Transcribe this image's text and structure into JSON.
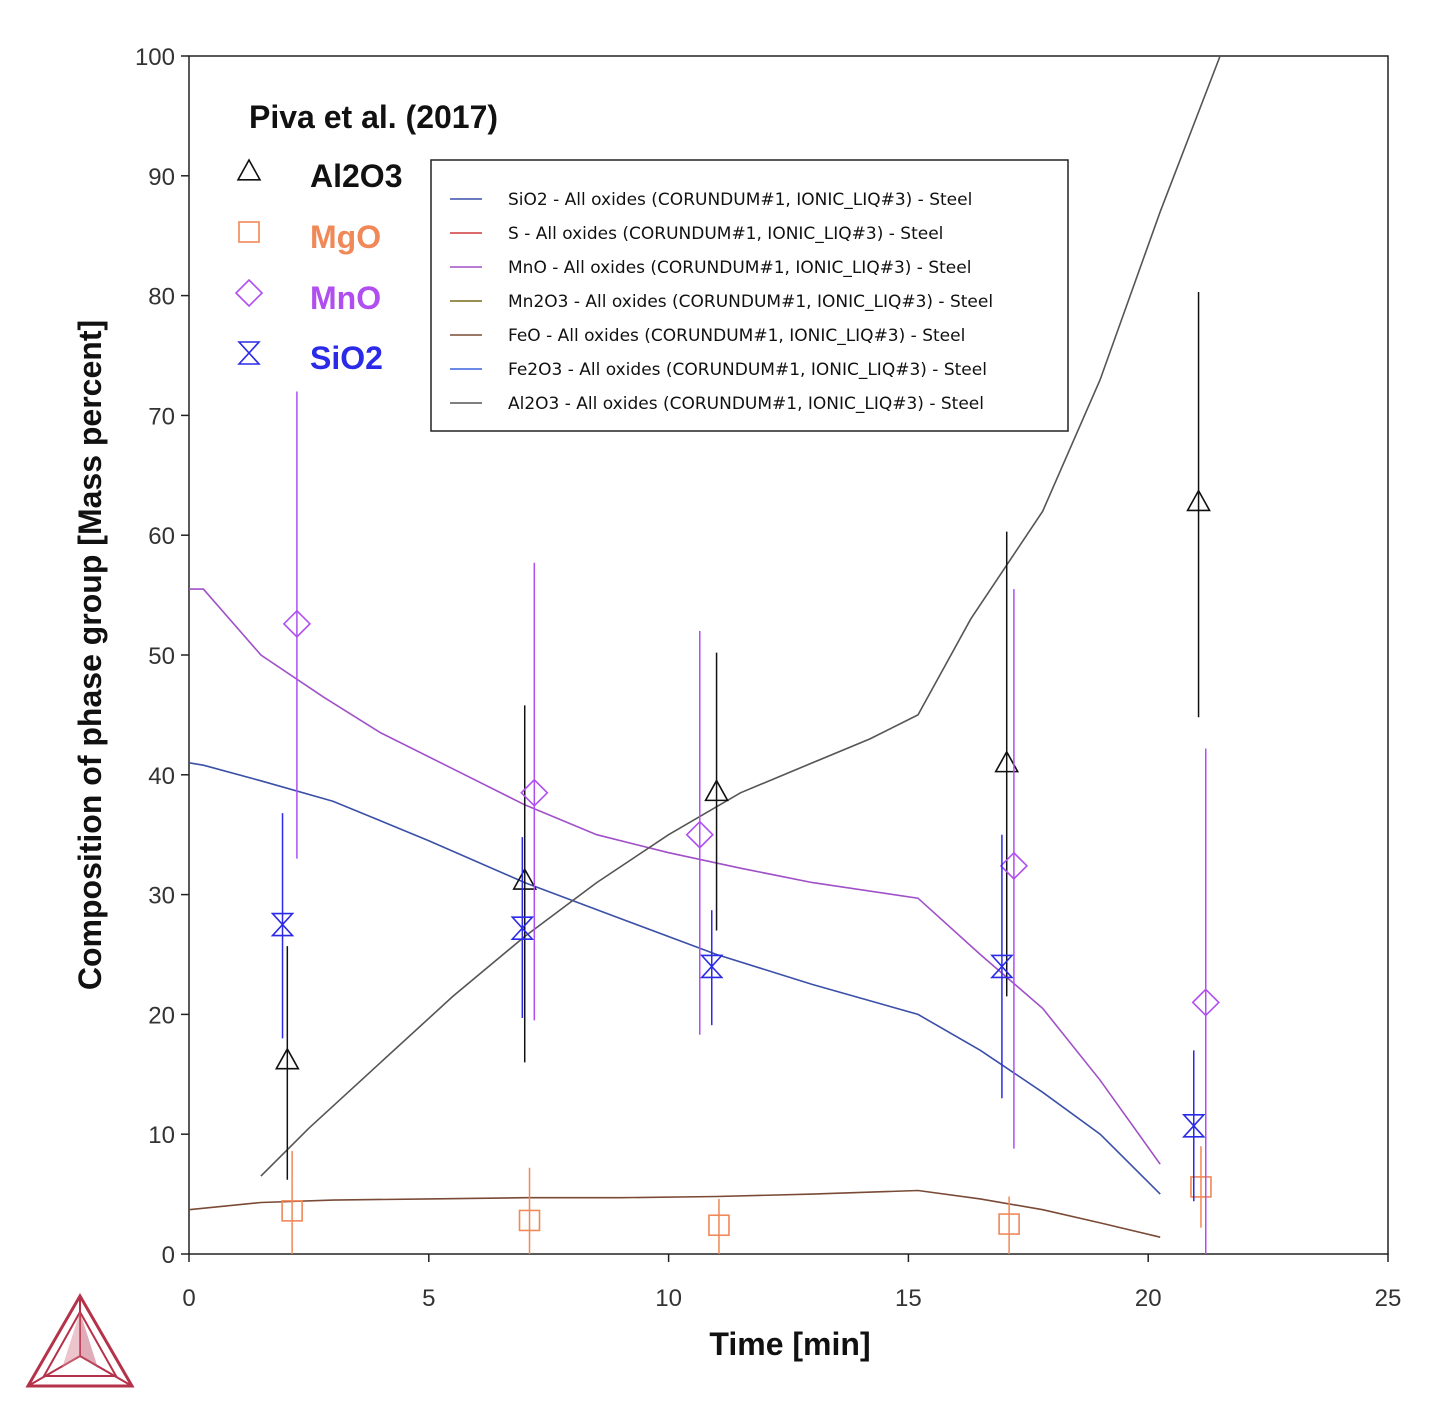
{
  "chart_data": {
    "type": "line",
    "xlabel": "Time [min]",
    "ylabel": "Composition of phase group [Mass percent]",
    "xlim": [
      0,
      25
    ],
    "ylim": [
      0,
      100
    ],
    "xticks": [
      0,
      5,
      10,
      15,
      20,
      25
    ],
    "yticks": [
      0,
      10,
      20,
      30,
      40,
      50,
      60,
      70,
      80,
      90,
      100
    ],
    "grid": false,
    "legend_position": "top-center",
    "series": [
      {
        "name": "SiO2 - All oxides (CORUNDUM#1, IONIC_LIQ#3) - Steel",
        "color": "#3a4fa8",
        "x": [
          0,
          0.3,
          1.5,
          3,
          5,
          7,
          9,
          11,
          13,
          15.2,
          16.5,
          17.8,
          19,
          20.25
        ],
        "y": [
          41,
          40.8,
          39.5,
          37.8,
          34.5,
          31,
          28,
          25,
          22.5,
          20,
          17,
          13.5,
          10,
          5
        ]
      },
      {
        "name": "S - All oxides (CORUNDUM#1, IONIC_LIQ#3) - Steel",
        "color": "#d03a3a",
        "x": [],
        "y": []
      },
      {
        "name": "MnO - All oxides (CORUNDUM#1, IONIC_LIQ#3) - Steel",
        "color": "#a050c8",
        "x": [
          0,
          0.3,
          1.5,
          2.8,
          4,
          5.5,
          7,
          8.5,
          10,
          11.5,
          13,
          15.2,
          16.5,
          17.8,
          19,
          20.25
        ],
        "y": [
          55.5,
          55.5,
          50,
          46.5,
          43.5,
          40.5,
          37.5,
          35,
          33.5,
          32.2,
          31,
          29.7,
          25,
          20.5,
          14.5,
          7.5
        ]
      },
      {
        "name": "Mn2O3 - All oxides (CORUNDUM#1, IONIC_LIQ#3) - Steel",
        "color": "#7a6a1a",
        "x": [],
        "y": []
      },
      {
        "name": "FeO - All oxides (CORUNDUM#1, IONIC_LIQ#3) - Steel",
        "color": "#7a4a36",
        "x": [
          0,
          1.5,
          3,
          5,
          7,
          9,
          11,
          13,
          15.2,
          16.5,
          17.8,
          19,
          20.25
        ],
        "y": [
          3.7,
          4.3,
          4.5,
          4.6,
          4.7,
          4.7,
          4.8,
          5.0,
          5.3,
          4.6,
          3.7,
          2.6,
          1.4
        ]
      },
      {
        "name": "Fe2O3 - All oxides (CORUNDUM#1, IONIC_LIQ#3) - Steel",
        "color": "#3a64e0",
        "x": [],
        "y": []
      },
      {
        "name": "Al2O3 - All oxides (CORUNDUM#1, IONIC_LIQ#3) - Steel",
        "color": "#555555",
        "x": [
          1.5,
          2.5,
          4,
          5.5,
          7,
          8.5,
          10,
          11.5,
          13,
          14.2,
          15.2,
          16.3,
          17.8,
          19,
          20.25,
          21.5
        ],
        "y": [
          6.5,
          10.5,
          16,
          21.5,
          26.5,
          31,
          35,
          38.5,
          41,
          43,
          45,
          53,
          62,
          73,
          87,
          100
        ]
      }
    ],
    "experimental": {
      "title": "Piva et al. (2017)",
      "series": [
        {
          "name": "Al2O3",
          "marker": "triangle",
          "color": "#111111",
          "points": [
            {
              "x": 2.05,
              "y": 16.2,
              "low": 6.2,
              "high": 25.7
            },
            {
              "x": 7.0,
              "y": 31.2,
              "low": 16.0,
              "high": 45.8
            },
            {
              "x": 11.0,
              "y": 38.6,
              "low": 27.0,
              "high": 50.2
            },
            {
              "x": 17.05,
              "y": 41.0,
              "low": 21.5,
              "high": 60.3
            },
            {
              "x": 21.05,
              "y": 62.8,
              "low": 44.8,
              "high": 80.3
            }
          ]
        },
        {
          "name": "MgO",
          "marker": "square",
          "color": "#f08858",
          "points": [
            {
              "x": 2.15,
              "y": 3.6,
              "low": 0,
              "high": 8.6
            },
            {
              "x": 7.1,
              "y": 2.8,
              "low": 0,
              "high": 7.2
            },
            {
              "x": 11.05,
              "y": 2.4,
              "low": 0,
              "high": 4.6
            },
            {
              "x": 17.1,
              "y": 2.5,
              "low": 0,
              "high": 4.8
            },
            {
              "x": 21.1,
              "y": 5.6,
              "low": 2.2,
              "high": 9.0
            }
          ]
        },
        {
          "name": "MnO",
          "marker": "diamond",
          "color": "#b04ef0",
          "points": [
            {
              "x": 2.25,
              "y": 52.6,
              "low": 33.0,
              "high": 72.0
            },
            {
              "x": 7.2,
              "y": 38.5,
              "low": 19.5,
              "high": 57.7
            },
            {
              "x": 10.65,
              "y": 35.0,
              "low": 18.3,
              "high": 52.0
            },
            {
              "x": 17.2,
              "y": 32.4,
              "low": 8.8,
              "high": 55.5
            },
            {
              "x": 21.2,
              "y": 21.0,
              "low": 0,
              "high": 42.2
            }
          ]
        },
        {
          "name": "SiO2",
          "marker": "hourglass",
          "color": "#2a2ae8",
          "points": [
            {
              "x": 1.95,
              "y": 27.5,
              "low": 18.0,
              "high": 36.8
            },
            {
              "x": 6.95,
              "y": 27.2,
              "low": 19.7,
              "high": 34.8
            },
            {
              "x": 10.9,
              "y": 24.0,
              "low": 19.1,
              "high": 28.7
            },
            {
              "x": 16.95,
              "y": 24.0,
              "low": 13.0,
              "high": 35.0
            },
            {
              "x": 20.95,
              "y": 10.7,
              "low": 4.4,
              "high": 17.0
            }
          ]
        }
      ]
    }
  },
  "branding": {
    "logo_icon": "thermo-calc-logo-icon",
    "logo_color": "#b5334a"
  }
}
